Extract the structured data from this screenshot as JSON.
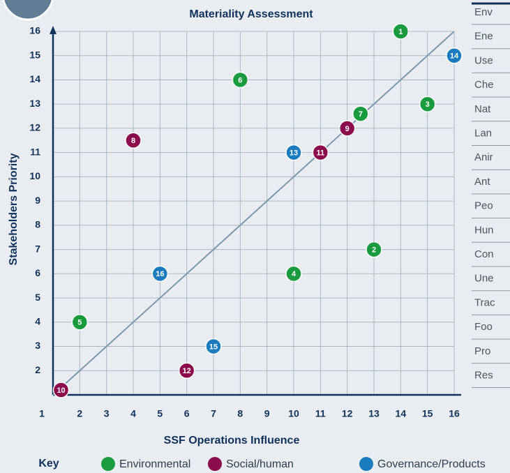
{
  "chart_data": {
    "type": "scatter",
    "title": "Materiality Assessment",
    "x_label": "SSF Operations Influence",
    "y_label": "Stakeholders Priority",
    "xlim": [
      1,
      16
    ],
    "ylim": [
      1,
      16
    ],
    "xticks": [
      1,
      2,
      3,
      4,
      5,
      6,
      7,
      8,
      9,
      10,
      11,
      12,
      13,
      14,
      15,
      16
    ],
    "yticks": [
      2,
      3,
      4,
      5,
      6,
      7,
      8,
      9,
      10,
      11,
      12,
      13,
      14,
      15,
      16
    ],
    "grid": true,
    "diagonal": true,
    "legend_title": "Key",
    "series": [
      {
        "name": "Environmental",
        "color": "#1b9b3f",
        "labels": [
          1,
          2,
          3,
          4,
          5,
          6,
          7
        ],
        "x": [
          14,
          13,
          15,
          10,
          2,
          8,
          12.5
        ],
        "values": [
          16,
          7,
          13,
          6,
          4,
          14,
          12.6
        ]
      },
      {
        "name": "Social/human",
        "color": "#8c0b4c",
        "labels": [
          8,
          9,
          10,
          11,
          12
        ],
        "x": [
          4,
          12,
          1.3,
          11,
          6
        ],
        "values": [
          11.5,
          12,
          1.2,
          11,
          2
        ]
      },
      {
        "name": "Governance/Products",
        "color": "#1a7bbf",
        "labels": [
          13,
          14,
          15,
          16
        ],
        "x": [
          10,
          16,
          7,
          5
        ],
        "values": [
          11,
          15,
          3,
          6
        ]
      }
    ]
  },
  "table": {
    "rows": [
      "Env",
      "Ene",
      "Use",
      "Che",
      "Nat",
      "Lan",
      "Anir",
      "Ant",
      "Peo",
      "Hun",
      "Con",
      "Une",
      "Trac",
      "Foo",
      "Pro",
      "Res"
    ]
  }
}
